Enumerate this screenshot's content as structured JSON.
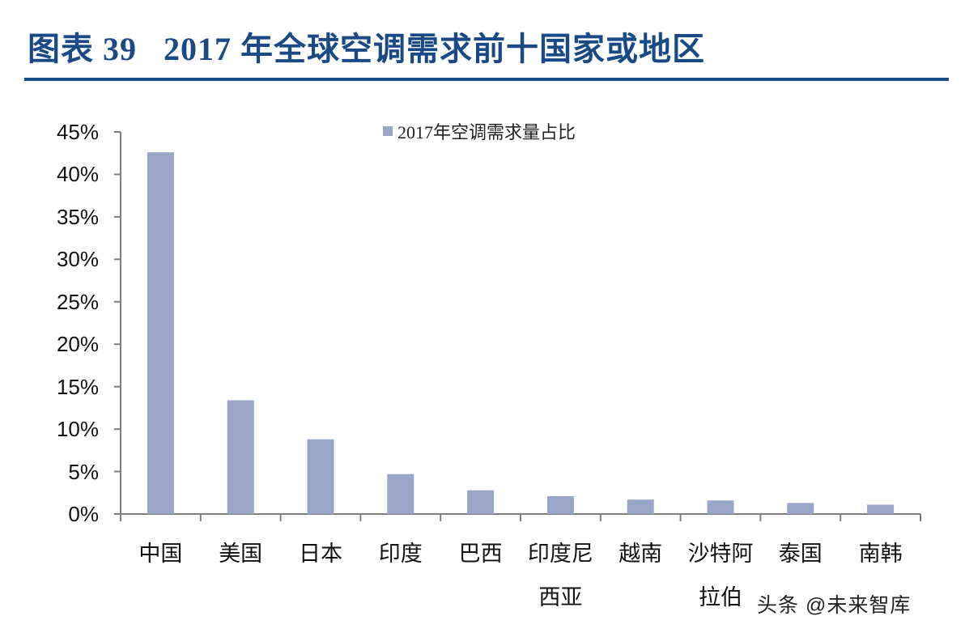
{
  "header": {
    "title": "图表 39   2017 年全球空调需求前十国家或地区"
  },
  "legend": {
    "label": "2017年空调需求量占比"
  },
  "watermark": "头条 @未来智库",
  "colors": {
    "bar": "#98a6c8",
    "title": "#1a4a86",
    "axis": "#7f7f7f"
  },
  "y_ticks": [
    "0%",
    "5%",
    "10%",
    "15%",
    "20%",
    "25%",
    "30%",
    "35%",
    "40%",
    "45%"
  ],
  "x_labels": [
    {
      "line1": "中国",
      "line2": ""
    },
    {
      "line1": "美国",
      "line2": ""
    },
    {
      "line1": "日本",
      "line2": ""
    },
    {
      "line1": "印度",
      "line2": ""
    },
    {
      "line1": "巴西",
      "line2": ""
    },
    {
      "line1": "印度尼",
      "line2": "西亚"
    },
    {
      "line1": "越南",
      "line2": ""
    },
    {
      "line1": "沙特阿",
      "line2": "拉伯"
    },
    {
      "line1": "泰国",
      "line2": ""
    },
    {
      "line1": "南韩",
      "line2": ""
    }
  ],
  "chart_data": {
    "type": "bar",
    "title": "2017 年全球空调需求前十国家或地区",
    "categories": [
      "中国",
      "美国",
      "日本",
      "印度",
      "巴西",
      "印度尼西亚",
      "越南",
      "沙特阿拉伯",
      "泰国",
      "南韩"
    ],
    "series": [
      {
        "name": "2017年空调需求量占比",
        "values": [
          42.6,
          13.4,
          8.8,
          4.7,
          2.8,
          2.1,
          1.7,
          1.6,
          1.3,
          1.1
        ]
      }
    ],
    "xlabel": "",
    "ylabel": "",
    "ylim": [
      0,
      45
    ],
    "y_tick_step": 5,
    "y_format": "percent",
    "grid": false,
    "legend_position": "top-center"
  }
}
